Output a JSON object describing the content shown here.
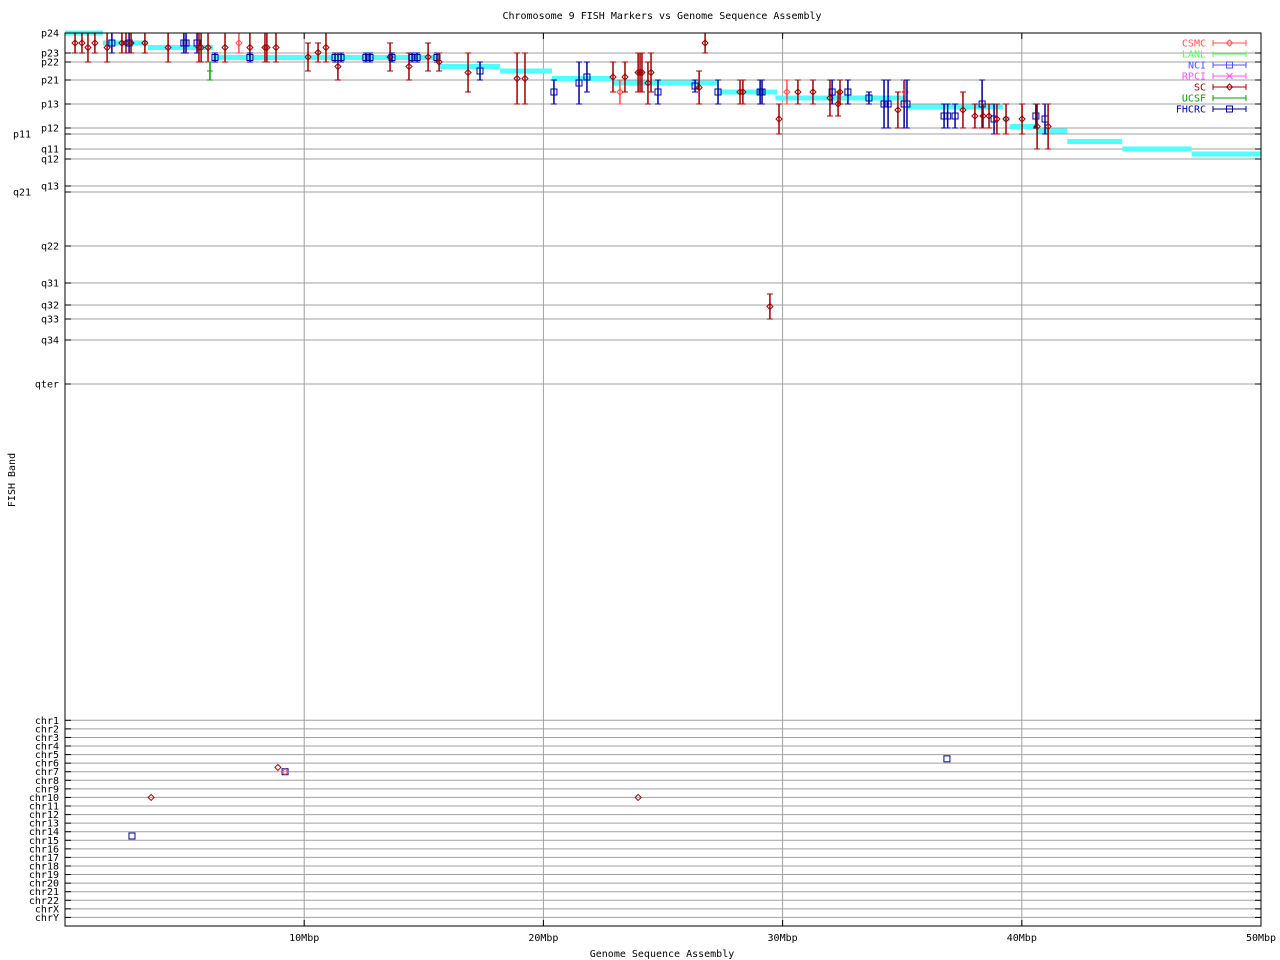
{
  "chart_data": {
    "type": "scatter",
    "title": "Chromosome 9 FISH Markers vs Genome Sequence Assembly",
    "xlabel": "Genome Sequence Assembly",
    "ylabel": "FISH Band",
    "x_unit": "Mbp",
    "xlim": [
      0,
      50
    ],
    "x_ticks": [
      10,
      20,
      30,
      40,
      50
    ],
    "x_tick_labels": [
      "10Mbp",
      "20Mbp",
      "30Mbp",
      "40Mbp",
      "50Mbp"
    ],
    "grid": true,
    "legend_position": "top-right",
    "y_bands": [
      "p24",
      "p23",
      "p22",
      "p21",
      "p13",
      "p12",
      "p11",
      "q11",
      "q12",
      "q13",
      "q21",
      "q22",
      "q31",
      "q32",
      "q33",
      "q34",
      "qter"
    ],
    "y_chromosomes": [
      "chr1",
      "chr2",
      "chr3",
      "chr4",
      "chr5",
      "chr6",
      "chr7",
      "chr8",
      "chr9",
      "chr10",
      "chr11",
      "chr12",
      "chr13",
      "chr14",
      "chr15",
      "chr16",
      "chr17",
      "chr18",
      "chr19",
      "chr20",
      "chr21",
      "chr22",
      "chrX",
      "chrY"
    ],
    "series": [
      {
        "name": "CSMC",
        "color": "#ff5050",
        "marker": "diamond"
      },
      {
        "name": "LANL",
        "color": "#50ff50",
        "marker": "tick"
      },
      {
        "name": "NCI",
        "color": "#5050ff",
        "marker": "square"
      },
      {
        "name": "RPCI",
        "color": "#ff50ff",
        "marker": "cross"
      },
      {
        "name": "SC",
        "color": "#a00000",
        "marker": "diamond"
      },
      {
        "name": "UCSF",
        "color": "#00a000",
        "marker": "tick"
      },
      {
        "name": "FHCRC",
        "color": "#0000a0",
        "marker": "square"
      }
    ],
    "assembly_color": "#50ffff",
    "assembly_contigs": [
      [
        0,
        1.59,
        "p24"
      ],
      [
        1.59,
        3.47,
        "p24/p23"
      ],
      [
        3.47,
        6.19,
        "p24/p22"
      ],
      [
        6.19,
        15.68,
        "p23/p22"
      ],
      [
        15.68,
        18.19,
        "p23/p21"
      ],
      [
        18.19,
        20.36,
        "p22/p21"
      ],
      [
        20.36,
        22.87,
        "p23/p13"
      ],
      [
        22.87,
        27.26,
        "p22/p13"
      ],
      [
        27.26,
        29.77,
        "p21/p13"
      ],
      [
        29.7,
        35.18,
        "p22/p11"
      ],
      [
        35.18,
        39.21,
        "p21/p11"
      ],
      [
        39.21,
        39.5,
        "p13/p11"
      ],
      [
        39.5,
        40.6,
        "p13/q11"
      ],
      [
        40.6,
        41.9,
        "p12/p11"
      ],
      [
        41.9,
        44.2,
        "p11/q11"
      ],
      [
        44.2,
        47.1,
        "q11"
      ],
      [
        47.1,
        50,
        "q11/q12"
      ]
    ],
    "points_format": [
      "series",
      "x_Mbp",
      "band_low",
      "band_high"
    ],
    "points": [
      [
        "SC",
        0.42,
        "p24",
        "p23"
      ],
      [
        "SC",
        0.71,
        "p24",
        "p23"
      ],
      [
        "SC",
        0.96,
        "p24",
        "p22"
      ],
      [
        "SC",
        1.25,
        "p24",
        "p23"
      ],
      [
        "SC",
        1.76,
        "p24",
        "p22"
      ],
      [
        "FHCRC",
        1.96,
        "p24",
        "p23"
      ],
      [
        "SC",
        2.38,
        "p24",
        "p23"
      ],
      [
        "SC",
        2.55,
        "p24",
        "p23"
      ],
      [
        "FHCRC",
        2.68,
        "p24",
        "p23"
      ],
      [
        "SC",
        2.76,
        "p24",
        "p23"
      ],
      [
        "SC",
        3.34,
        "p24",
        "p23"
      ],
      [
        "SC",
        4.31,
        "p24",
        "p22"
      ],
      [
        "FHCRC",
        4.97,
        "p24",
        "p23"
      ],
      [
        "FHCRC",
        5.06,
        "p24",
        "p23"
      ],
      [
        "FHCRC",
        5.52,
        "p24",
        "p23"
      ],
      [
        "SC",
        5.6,
        "p24",
        "p22"
      ],
      [
        "SC",
        5.69,
        "p24",
        "p22"
      ],
      [
        "SC",
        5.98,
        "p24",
        "p22"
      ],
      [
        "UCSF",
        6.06,
        "p22",
        "p21"
      ],
      [
        "FHCRC",
        6.27,
        "p23",
        "p22"
      ],
      [
        "SC",
        6.69,
        "p24",
        "p22"
      ],
      [
        "CSMC",
        7.27,
        "p24",
        "p23"
      ],
      [
        "SC",
        7.73,
        "p24",
        "p22"
      ],
      [
        "FHCRC",
        7.73,
        "p23",
        "p22"
      ],
      [
        "SC",
        8.36,
        "p24",
        "p22"
      ],
      [
        "SC",
        8.44,
        "p24",
        "p22"
      ],
      [
        "SC",
        8.82,
        "p24",
        "p22"
      ],
      [
        "SC",
        10.16,
        "p24/p23",
        "p22/p21"
      ],
      [
        "SC",
        10.58,
        "p24/p23",
        "p22"
      ],
      [
        "SC",
        10.91,
        "p24",
        "p22"
      ],
      [
        "FHCRC",
        11.29,
        "p23",
        "p22"
      ],
      [
        "SC",
        11.41,
        "p23",
        "p21"
      ],
      [
        "FHCRC",
        11.54,
        "p23",
        "p22"
      ],
      [
        "FHCRC",
        12.58,
        "p23",
        "p22"
      ],
      [
        "FHCRC",
        12.75,
        "p23",
        "p22"
      ],
      [
        "SC",
        13.59,
        "p24/p23",
        "p22/p21"
      ],
      [
        "FHCRC",
        13.67,
        "p23",
        "p22"
      ],
      [
        "SC",
        14.38,
        "p23",
        "p21"
      ],
      [
        "FHCRC",
        14.51,
        "p23",
        "p22"
      ],
      [
        "FHCRC",
        14.72,
        "p23",
        "p22"
      ],
      [
        "SC",
        15.18,
        "p24/p23",
        "p22/p21"
      ],
      [
        "FHCRC",
        15.55,
        "p23",
        "p22"
      ],
      [
        "SC",
        15.64,
        "p23",
        "p22/p21"
      ],
      [
        "SC",
        16.85,
        "p23",
        "p21/p13"
      ],
      [
        "FHCRC",
        17.35,
        "p22",
        "p21"
      ],
      [
        "SC",
        18.9,
        "p23",
        "p13"
      ],
      [
        "SC",
        19.23,
        "p23",
        "p13"
      ],
      [
        "FHCRC",
        20.44,
        "p21",
        "p13"
      ],
      [
        "FHCRC",
        21.49,
        "p22",
        "p13"
      ],
      [
        "FHCRC",
        21.82,
        "p22",
        "p21/p13"
      ],
      [
        "SC",
        22.91,
        "p22",
        "p21/p13"
      ],
      [
        "CSMC",
        23.2,
        "p21",
        "p13"
      ],
      [
        "SC",
        23.41,
        "p22",
        "p21/p13"
      ],
      [
        "SC",
        23.96,
        "p23",
        "p21/p13"
      ],
      [
        "SC",
        24.04,
        "p23",
        "p21/p13"
      ],
      [
        "SC",
        24.12,
        "p23",
        "p21/p13"
      ],
      [
        "SC",
        24.37,
        "p22",
        "p13"
      ],
      [
        "SC",
        24.5,
        "p23",
        "p21/p13"
      ],
      [
        "FHCRC",
        24.79,
        "p21",
        "p13"
      ],
      [
        "FHCRC",
        26.34,
        "p21",
        "p21/p13"
      ],
      [
        "SC",
        26.51,
        "p22/p21",
        "p13"
      ],
      [
        "SC",
        26.76,
        "p24",
        "p23"
      ],
      [
        "FHCRC",
        27.3,
        "p21",
        "p13"
      ],
      [
        "SC",
        28.22,
        "p21",
        "p13"
      ],
      [
        "SC",
        28.34,
        "p21",
        "p13"
      ],
      [
        "FHCRC",
        29.06,
        "p21",
        "p13"
      ],
      [
        "FHCRC",
        29.14,
        "p21",
        "p13"
      ],
      [
        "SC",
        29.85,
        "p13",
        "p11"
      ],
      [
        "CSMC",
        30.18,
        "p21",
        "p13"
      ],
      [
        "SC",
        30.64,
        "p21",
        "p13"
      ],
      [
        "SC",
        31.27,
        "p21",
        "p13"
      ],
      [
        "SC",
        31.98,
        "p21",
        "p13/p12"
      ],
      [
        "FHCRC",
        32.07,
        "p21",
        "p13"
      ],
      [
        "SC",
        32.32,
        "p21/p13",
        "p13/p12"
      ],
      [
        "SC",
        32.4,
        "p21",
        "p13"
      ],
      [
        "FHCRC",
        32.73,
        "p21",
        "p13"
      ],
      [
        "FHCRC",
        33.61,
        "p21/p13",
        "p13"
      ],
      [
        "FHCRC",
        34.24,
        "p21",
        "p12"
      ],
      [
        "FHCRC",
        34.41,
        "p21",
        "p12"
      ],
      [
        "SC",
        34.82,
        "p21/p13",
        "p12"
      ],
      [
        "FHCRC",
        35.08,
        "p21",
        "p12"
      ],
      [
        "CSMC",
        35.12,
        "p21",
        "p13"
      ],
      [
        "FHCRC",
        35.2,
        "p21",
        "p12"
      ],
      [
        "FHCRC",
        36.75,
        "p13",
        "p12"
      ],
      [
        "FHCRC",
        36.9,
        "p13",
        "p12"
      ],
      [
        "FHCRC",
        37.21,
        "p13",
        "p12"
      ],
      [
        "SC",
        37.54,
        "p21/p13",
        "p12"
      ],
      [
        "SC",
        38.04,
        "p13",
        "p12"
      ],
      [
        "FHCRC",
        38.34,
        "p21",
        "p12"
      ],
      [
        "SC",
        38.38,
        "p13",
        "p12"
      ],
      [
        "SC",
        38.63,
        "p13",
        "p12"
      ],
      [
        "FHCRC",
        38.84,
        "p13",
        "p11"
      ],
      [
        "SC",
        38.96,
        "p13",
        "p11"
      ],
      [
        "SC",
        39.34,
        "p13",
        "p11"
      ],
      [
        "SC",
        40.01,
        "p13",
        "p11"
      ],
      [
        "FHCRC",
        40.59,
        "p13",
        "p12"
      ],
      [
        "SC",
        40.64,
        "p13",
        "q11"
      ],
      [
        "FHCRC",
        40.97,
        "p13",
        "p11"
      ],
      [
        "SC",
        41.1,
        "p13",
        "q11"
      ],
      [
        "SC",
        29.47,
        "q31/q32",
        "q33"
      ],
      [
        "SC",
        3.6,
        "chr10",
        "chr10"
      ],
      [
        "FHCRC",
        2.8,
        "chr14/chr15",
        "chr14/chr15"
      ],
      [
        "SC",
        8.9,
        "chr6/chr7",
        "chr6/chr7"
      ],
      [
        "FHCRC",
        9.2,
        "chr7",
        "chr7"
      ],
      [
        "CSMC",
        9.2,
        "chr7",
        "chr7"
      ],
      [
        "SC",
        23.96,
        "chr10",
        "chr10"
      ],
      [
        "FHCRC",
        36.87,
        "chr5/chr6",
        "chr5/chr6"
      ]
    ]
  }
}
